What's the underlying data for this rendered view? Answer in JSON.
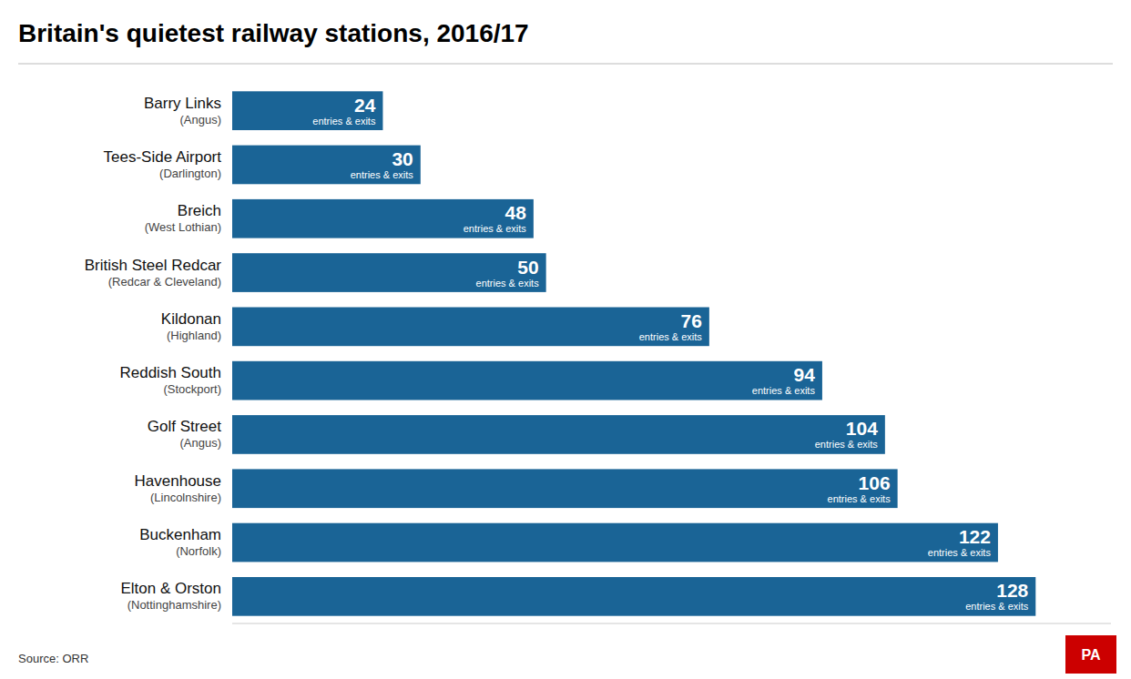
{
  "chart_data": {
    "type": "bar",
    "orientation": "horizontal",
    "title": "Britain's quietest railway stations, 2016/17",
    "categories": [
      "Barry Links",
      "Tees-Side Airport",
      "Breich",
      "British Steel Redcar",
      "Kildonan",
      "Reddish South",
      "Golf Street",
      "Havenhouse",
      "Buckenham",
      "Elton & Orston"
    ],
    "regions": [
      "(Angus)",
      "(Darlington)",
      "(West Lothian)",
      "(Redcar & Cleveland)",
      "(Highland)",
      "(Stockport)",
      "(Angus)",
      "(Lincolnshire)",
      "(Norfolk)",
      "(Nottinghamshire)"
    ],
    "values": [
      24,
      30,
      48,
      50,
      76,
      94,
      104,
      106,
      122,
      128
    ],
    "value_sublabel": "entries & exits",
    "color": "#1a6496",
    "xlim": [
      0,
      140
    ],
    "tick_labels": false,
    "grid": false,
    "data_labels": true,
    "source": "Source: ORR",
    "logo": {
      "text": "PA",
      "color": "#cc0000"
    }
  }
}
